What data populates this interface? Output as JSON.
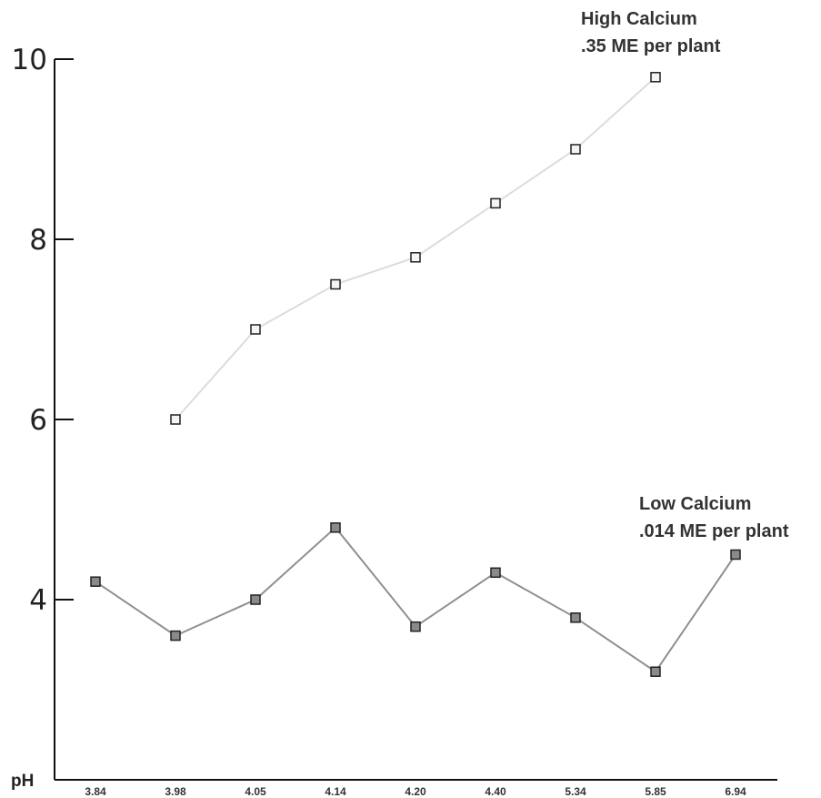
{
  "chart_data": {
    "type": "line",
    "title": "",
    "xlabel": "pH",
    "ylabel": "",
    "categories": [
      "3.84",
      "3.98",
      "4.05",
      "4.14",
      "4.20",
      "4.40",
      "5.34",
      "5.85",
      "6.94"
    ],
    "y_ticks": [
      "4",
      "6",
      "8",
      "10"
    ],
    "ylim": [
      2,
      10
    ],
    "grid": false,
    "series": [
      {
        "name": "High Calcium",
        "label_lines": [
          "High Calcium",
          ".35 ME per plant"
        ],
        "values": [
          null,
          6.0,
          7.0,
          7.5,
          7.8,
          8.4,
          9.0,
          9.8,
          null
        ],
        "color": "#dcdcdc",
        "marker_fill": "#f4f4f4"
      },
      {
        "name": "Low Calcium",
        "label_lines": [
          "Low Calcium",
          ".014 ME per plant"
        ],
        "values": [
          4.2,
          3.6,
          4.0,
          4.8,
          3.7,
          4.3,
          3.8,
          3.2,
          4.5
        ],
        "color": "#8f8f8f",
        "marker_fill": "#8a8a8a"
      }
    ]
  }
}
